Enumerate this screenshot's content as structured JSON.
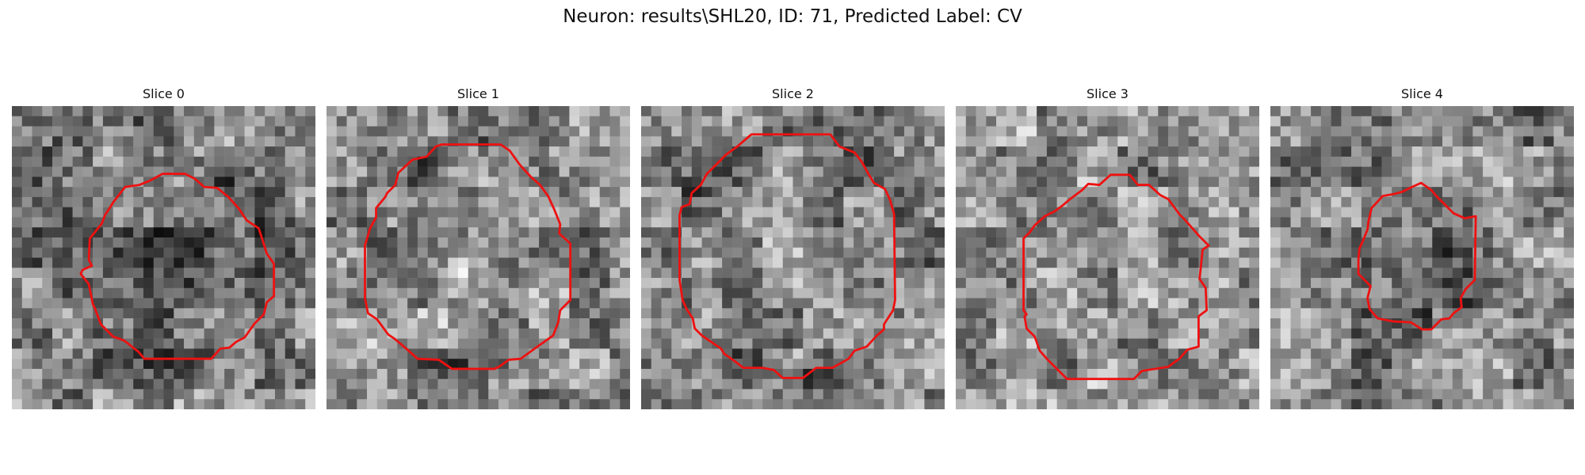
{
  "figure": {
    "title": "Neuron: results\\SHL20, ID: 71, Predicted Label: CV"
  },
  "panels": [
    {
      "title": "Slice 0",
      "mean": 0.5,
      "darkCenter": 0.17,
      "darkRadius": 0.33,
      "spot": 0.0
    },
    {
      "title": "Slice 1",
      "mean": 0.56,
      "darkCenter": 0.0,
      "darkRadius": 0.36,
      "spot": 0.35
    },
    {
      "title": "Slice 2",
      "mean": 0.53,
      "darkCenter": 0.0,
      "darkRadius": 0.4,
      "spot": 0.0
    },
    {
      "title": "Slice 3",
      "mean": 0.58,
      "darkCenter": 0.0,
      "darkRadius": 0.32,
      "spot": 0.0
    },
    {
      "title": "Slice 4",
      "mean": 0.52,
      "darkCenter": 0.14,
      "darkRadius": 0.2,
      "spot": 0.0
    }
  ],
  "colors": {
    "contour": "#ee1111",
    "background": "#ffffff"
  }
}
